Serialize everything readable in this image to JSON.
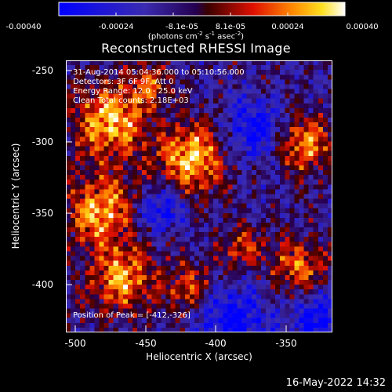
{
  "colorbar": {
    "ticks": [
      "-0.00040",
      "-0.00024",
      "-8.1e-05",
      "8.1e-05",
      "0.00024",
      "0.00040"
    ],
    "units_prefix": "(photons cm",
    "units_exp1": "-2",
    "units_mid": " s",
    "units_exp2": "-1",
    "units_mid2": " asec",
    "units_exp3": "-2",
    "units_suffix": ")"
  },
  "title": "Reconstructed RHESSI Image",
  "info": {
    "line1": "31-Aug-2014 05:04:36.000 to 05:10:56.000",
    "line2": "Detectors: 3F 6F 9F, Att 0",
    "line3": "Energy Range: 12.0 - 25.0 keV",
    "line4": "Clean     Total counts: 2.18E+03",
    "peak": "Position of Peak = [-412,-326]"
  },
  "axes": {
    "xlabel": "Heliocentric X (arcsec)",
    "ylabel": "Heliocentric Y (arcsec)",
    "xticks": [
      "-500",
      "-450",
      "-400",
      "-350"
    ],
    "yticks": [
      "-250",
      "-300",
      "-350",
      "-400"
    ]
  },
  "footer": {
    "date": "16-May-2022 14:32"
  },
  "colors": {
    "background": "#000000",
    "foreground": "#ffffff"
  },
  "chart_data": {
    "type": "heatmap",
    "title": "Reconstructed RHESSI Image",
    "xlabel": "Heliocentric X (arcsec)",
    "ylabel": "Heliocentric Y (arcsec)",
    "xlim": [
      -508,
      -322
    ],
    "ylim": [
      -433,
      -242
    ],
    "colorbar_range": [
      -0.0004,
      0.0004
    ],
    "colormap": "blue-purple-red-yellow-white"
  }
}
